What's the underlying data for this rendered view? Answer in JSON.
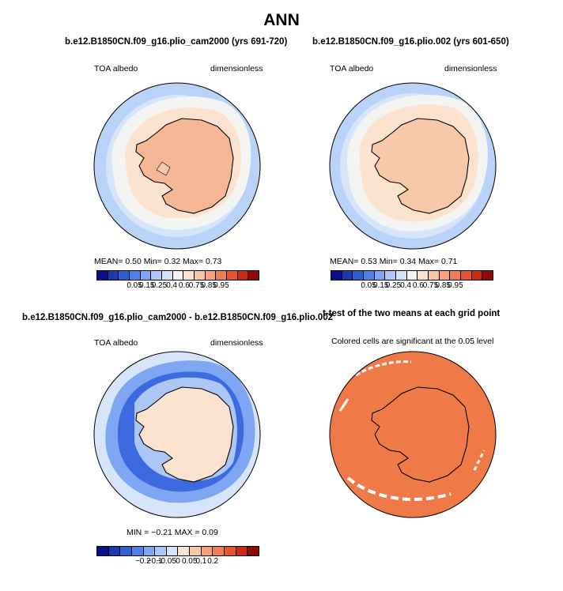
{
  "title": "ANN",
  "panels": [
    {
      "title": "b.e12.B1850CN.f09_g16.plio_cam2000 (yrs 691-720)",
      "left_label": "TOA albedo",
      "right_label": "dimensionless",
      "stats": "MEAN=   0.50   Min=    0.32   Max=    0.73"
    },
    {
      "title": "b.e12.B1850CN.f09_g16.plio.002 (yrs 601-650)",
      "left_label": "TOA albedo",
      "right_label": "dimensionless",
      "stats": "MEAN=   0.53   Min=    0.34   Max=    0.71"
    },
    {
      "title": "b.e12.B1850CN.f09_g16.plio_cam2000 - b.e12.B1850CN.f09_g16.plio.002",
      "left_label": "TOA albedo",
      "right_label": "dimensionless",
      "stats": "MIN  =   −0.21  MAX  =    0.09"
    },
    {
      "title": "t-test of the two means at each grid point",
      "note": "Colored cells are significant at the 0.05 level"
    }
  ],
  "colorbar_abs": {
    "labels": [
      "0.05",
      "0.15",
      "0.25",
      "0.4",
      "0.6",
      "0.75",
      "0.85",
      "0.95"
    ],
    "colors": [
      "#08108a",
      "#1a3bb0",
      "#2f5fd0",
      "#4f80e8",
      "#7ea6f2",
      "#abc6f7",
      "#d4e3fa",
      "#f4f5f3",
      "#fbe3d0",
      "#f8c5a6",
      "#f5a27c",
      "#ef7f52",
      "#e55530",
      "#c92c12",
      "#8e0b06"
    ]
  },
  "colorbar_diff": {
    "labels": [
      "−0.2",
      "−0.1",
      "−0.05",
      "0",
      "0.05",
      "0.1",
      "0.2"
    ],
    "colors": [
      "#08108a",
      "#1a3bb0",
      "#2f5fd0",
      "#4f80e8",
      "#7ea6f2",
      "#abc6f7",
      "#d4e3fa",
      "#fbe3d0",
      "#f8c5a6",
      "#f5a27c",
      "#ef7f52",
      "#e55530",
      "#c92c12",
      "#8e0b06"
    ]
  },
  "colors": {
    "ocean_far": "#b9d2f7",
    "ocean_mid": "#d6e5fa",
    "ice_edge": "#f4f5f3",
    "shelf": "#fbe3d0",
    "continent_a": "#f6b796",
    "continent_b": "#f8c8ab",
    "diff_strong": "#3d6ae0",
    "diff_mid": "#7ea6f2",
    "diff_weak": "#abc6f7",
    "diff_pos": "#fbe3d0",
    "signif": "#ef7a48"
  }
}
